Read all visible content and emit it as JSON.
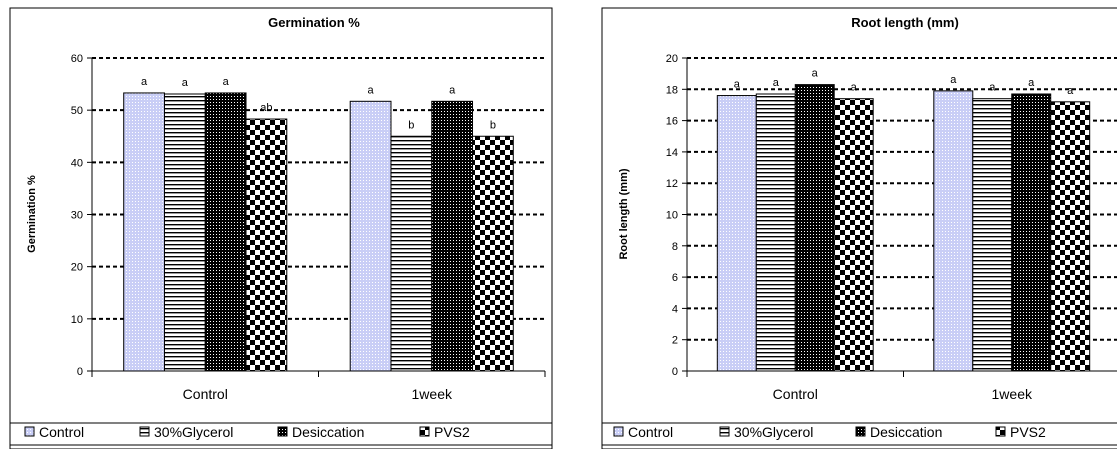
{
  "legend_labels": [
    "Control",
    "30%Glycerol",
    "Desiccation",
    "PVS2"
  ],
  "colors": {
    "control": "#c9cef6",
    "frame": "#000000"
  },
  "chart_data": [
    {
      "type": "bar",
      "title": "Germination %",
      "ylabel": "Germination %",
      "xlabel": "",
      "categories": [
        "Control",
        "1week"
      ],
      "ylim": [
        0,
        60
      ],
      "yticks": [
        "0",
        "10",
        "20",
        "30",
        "40",
        "50",
        "60"
      ],
      "grid": true,
      "legend_position": "bottom",
      "series": [
        {
          "name": "Control",
          "values": [
            53.3,
            51.7
          ],
          "labels": [
            "a",
            "a"
          ]
        },
        {
          "name": "30%Glycerol",
          "values": [
            53.1,
            45.0
          ],
          "labels": [
            "a",
            "b"
          ]
        },
        {
          "name": "Desiccation",
          "values": [
            53.3,
            51.7
          ],
          "labels": [
            "a",
            "a"
          ]
        },
        {
          "name": "PVS2",
          "values": [
            48.3,
            45.0
          ],
          "labels": [
            "ab",
            "b"
          ]
        }
      ]
    },
    {
      "type": "bar",
      "title": "Root length (mm)",
      "ylabel": "Root length (mm)",
      "xlabel": "",
      "categories": [
        "Control",
        "1week"
      ],
      "ylim": [
        0,
        20
      ],
      "yticks": [
        "0",
        "2",
        "4",
        "6",
        "8",
        "10",
        "12",
        "14",
        "16",
        "18",
        "20"
      ],
      "grid": true,
      "legend_position": "bottom",
      "series": [
        {
          "name": "Control",
          "values": [
            17.6,
            17.9
          ],
          "labels": [
            "a",
            "a"
          ]
        },
        {
          "name": "30%Glycerol",
          "values": [
            17.7,
            17.4
          ],
          "labels": [
            "a",
            "a"
          ]
        },
        {
          "name": "Desiccation",
          "values": [
            18.3,
            17.7
          ],
          "labels": [
            "a",
            "a"
          ]
        },
        {
          "name": "PVS2",
          "values": [
            17.4,
            17.2
          ],
          "labels": [
            "a",
            "a"
          ]
        }
      ]
    }
  ]
}
